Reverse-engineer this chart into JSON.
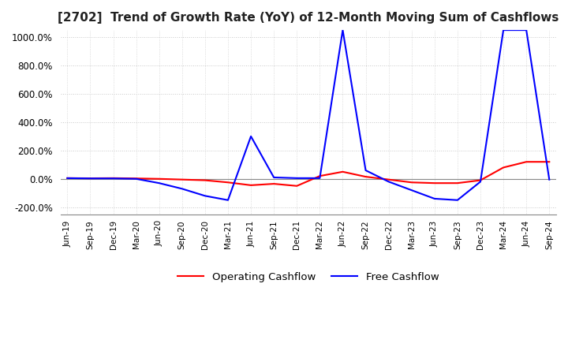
{
  "title": "[2702]  Trend of Growth Rate (YoY) of 12-Month Moving Sum of Cashflows",
  "title_fontsize": 11,
  "ylim": [
    -250,
    1050
  ],
  "yticks": [
    -200,
    0,
    200,
    400,
    600,
    800,
    1000
  ],
  "ytick_labels": [
    "-200.0%",
    "0.0%",
    "200.0%",
    "400.0%",
    "600.0%",
    "800.0%",
    "1000.0%"
  ],
  "background_color": "#ffffff",
  "grid_color": "#c8c8c8",
  "operating_color": "#ff0000",
  "free_color": "#0000ff",
  "x_labels": [
    "Jun-19",
    "Sep-19",
    "Dec-19",
    "Mar-20",
    "Jun-20",
    "Sep-20",
    "Dec-20",
    "Mar-21",
    "Jun-21",
    "Sep-21",
    "Dec-21",
    "Mar-22",
    "Jun-22",
    "Sep-22",
    "Dec-22",
    "Mar-23",
    "Jun-23",
    "Sep-23",
    "Dec-23",
    "Mar-24",
    "Jun-24",
    "Sep-24"
  ],
  "operating_cashflow": [
    5.0,
    4.0,
    5.0,
    3.0,
    0.0,
    -5.0,
    -10.0,
    -25.0,
    -45.0,
    -35.0,
    -50.0,
    20.0,
    50.0,
    15.0,
    -5.0,
    -25.0,
    -30.0,
    -30.0,
    -10.0,
    80.0,
    120.0,
    120.0
  ],
  "free_cashflow": [
    5.0,
    3.0,
    3.0,
    0.0,
    -30.0,
    -70.0,
    -120.0,
    -150.0,
    300.0,
    10.0,
    5.0,
    5.0,
    1050.0,
    60.0,
    -20.0,
    -80.0,
    -140.0,
    -150.0,
    -20.0,
    1050.0,
    1050.0,
    -5.0
  ]
}
